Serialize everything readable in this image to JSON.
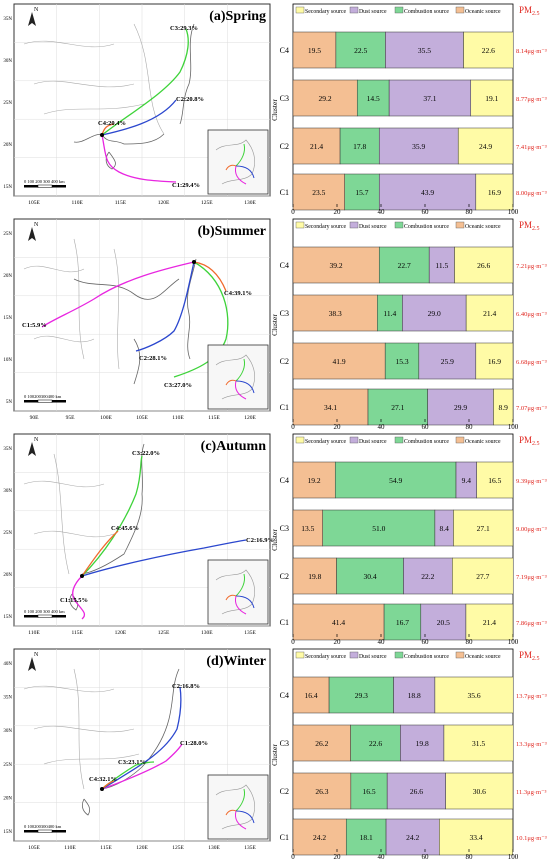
{
  "legend": {
    "secondary": "Secondary source",
    "dust": "Dust source",
    "combustion": "Combustion source",
    "oceanic": "Oceanic source",
    "pm": "PM",
    "pm_sub": "2.5"
  },
  "colors": {
    "oceanic": "#F4BF93",
    "combustion": "#7ED796",
    "dust": "#C3AEDB",
    "secondary": "#FFFBA6",
    "pm_text": "#e0261f",
    "c1": "#e826e0",
    "c2": "#2b47ce",
    "c3": "#3ed33a",
    "c4": "#f06a2c"
  },
  "axis": {
    "xlabel": "Proportion(%)",
    "ylabel": "Cluster",
    "xticks": [
      "0",
      "20",
      "40",
      "60",
      "80",
      "100"
    ]
  },
  "maps": [
    {
      "title": "(a)Spring",
      "lat_ticks": [
        "35N",
        "30N",
        "25N",
        "20N",
        "15N"
      ],
      "lon_ticks": [
        "105E",
        "110E",
        "115E",
        "120E",
        "125E",
        "130E"
      ],
      "cluster_labels": [
        "C1:29.4%",
        "C2:20.8%",
        "C3:29.3%",
        "C4:20.4%"
      ],
      "scale": "0 100 200 300 400 km"
    },
    {
      "title": "(b)Summer",
      "lat_ticks": [
        "25N",
        "20N",
        "15N",
        "10N",
        "5N"
      ],
      "lon_ticks": [
        "90E",
        "95E",
        "100E",
        "105E",
        "110E",
        "115E",
        "120E"
      ],
      "cluster_labels": [
        "C1:5.9%",
        "C2:28.1%",
        "C3:27.0%",
        "C4:39.1%"
      ],
      "scale": "0 100200300400 km"
    },
    {
      "title": "(c)Autumn",
      "lat_ticks": [
        "35N",
        "30N",
        "25N",
        "20N",
        "15N"
      ],
      "lon_ticks": [
        "110E",
        "115E",
        "120E",
        "125E",
        "130E",
        "135E"
      ],
      "cluster_labels": [
        "C1:15.5%",
        "C2:16.9%",
        "C3:22.0%",
        "C4:45.6%"
      ],
      "scale": "0 100 200 300 400 km"
    },
    {
      "title": "(d)Winter",
      "lat_ticks": [
        "40N",
        "35N",
        "30N",
        "25N",
        "20N",
        "15N"
      ],
      "lon_ticks": [
        "105E",
        "110E",
        "115E",
        "120E",
        "125E",
        "130E",
        "135E"
      ],
      "cluster_labels": [
        "C1:28.0%",
        "C2:16.8%",
        "C3:23.1%",
        "C4:32.1%"
      ],
      "scale": "0 100200300400 km"
    }
  ],
  "chart_data": [
    {
      "type": "bar",
      "orientation": "horizontal-stacked",
      "categories": [
        "C4",
        "C3",
        "C2",
        "C1"
      ],
      "series": [
        {
          "name": "Oceanic source",
          "values": [
            19.5,
            29.2,
            21.4,
            23.5
          ]
        },
        {
          "name": "Combustion source",
          "values": [
            22.5,
            14.5,
            17.8,
            15.7
          ]
        },
        {
          "name": "Dust source",
          "values": [
            35.5,
            37.1,
            35.9,
            43.9
          ]
        },
        {
          "name": "Secondary source",
          "values": [
            22.6,
            19.1,
            24.9,
            16.9
          ]
        }
      ],
      "pm25": [
        "8.14μg·m⁻³",
        "8.77μg·m⁻³",
        "7.41μg·m⁻³",
        "8.00μg·m⁻³"
      ],
      "xlim": [
        0,
        100
      ]
    },
    {
      "type": "bar",
      "orientation": "horizontal-stacked",
      "categories": [
        "C4",
        "C3",
        "C2",
        "C1"
      ],
      "series": [
        {
          "name": "Oceanic source",
          "values": [
            39.2,
            38.3,
            41.9,
            34.1
          ]
        },
        {
          "name": "Combustion source",
          "values": [
            22.7,
            11.4,
            15.3,
            27.1
          ]
        },
        {
          "name": "Dust source",
          "values": [
            11.5,
            29.0,
            25.9,
            29.9
          ]
        },
        {
          "name": "Secondary source",
          "values": [
            26.6,
            21.4,
            16.9,
            8.9
          ]
        }
      ],
      "pm25": [
        "7.21μg·m⁻³",
        "6.40μg·m⁻³",
        "6.68μg·m⁻³",
        "7.07μg·m⁻³"
      ],
      "xlim": [
        0,
        100
      ]
    },
    {
      "type": "bar",
      "orientation": "horizontal-stacked",
      "categories": [
        "C4",
        "C3",
        "C2",
        "C1"
      ],
      "series": [
        {
          "name": "Oceanic source",
          "values": [
            19.2,
            13.5,
            19.8,
            41.4
          ]
        },
        {
          "name": "Combustion source",
          "values": [
            54.9,
            51.0,
            30.4,
            16.7
          ]
        },
        {
          "name": "Dust source",
          "values": [
            9.4,
            8.4,
            22.2,
            20.5
          ]
        },
        {
          "name": "Secondary source",
          "values": [
            16.5,
            27.1,
            27.7,
            21.4
          ]
        }
      ],
      "pm25": [
        "9.39μg·m⁻³",
        "9.00μg·m⁻³",
        "7.19μg·m⁻³",
        "7.86μg·m⁻³"
      ],
      "xlim": [
        0,
        100
      ]
    },
    {
      "type": "bar",
      "orientation": "horizontal-stacked",
      "categories": [
        "C4",
        "C3",
        "C2",
        "C1"
      ],
      "series": [
        {
          "name": "Oceanic source",
          "values": [
            16.4,
            26.2,
            26.3,
            24.2
          ]
        },
        {
          "name": "Combustion source",
          "values": [
            29.3,
            22.6,
            16.5,
            18.1
          ]
        },
        {
          "name": "Dust source",
          "values": [
            18.8,
            19.8,
            26.6,
            24.2
          ]
        },
        {
          "name": "Secondary source",
          "values": [
            35.6,
            31.5,
            30.6,
            33.4
          ]
        }
      ],
      "pm25": [
        "13.7μg·m⁻³",
        "13.3μg·m⁻³",
        "11.3μg·m⁻³",
        "10.1μg·m⁻³"
      ],
      "xlim": [
        0,
        100
      ]
    }
  ]
}
